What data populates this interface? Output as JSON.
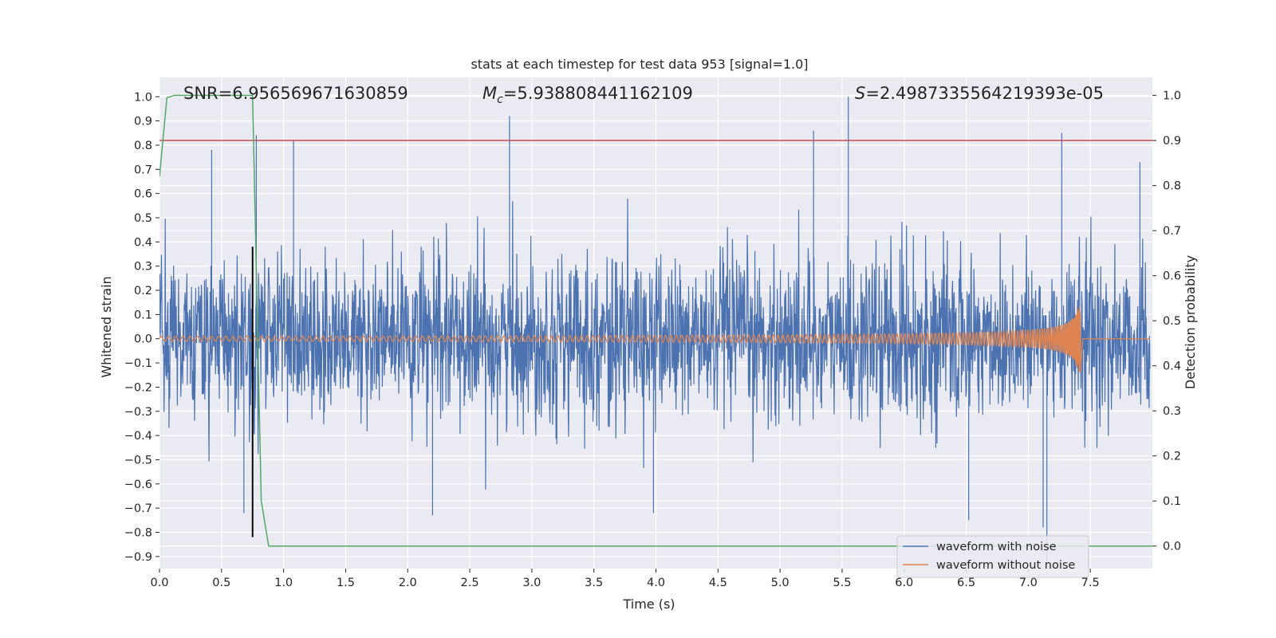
{
  "chart_data": {
    "type": "line",
    "title": "stats at each timestep for test data 953 [signal=1.0]",
    "xlabel": "Time (s)",
    "ylabel": "Whitened strain",
    "y2label": "Detection probability",
    "xlim": [
      0.0,
      8.0
    ],
    "ylim": [
      -0.95,
      1.08
    ],
    "y2lim": [
      -0.05,
      1.04
    ],
    "x_ticks": [
      0.0,
      0.5,
      1.0,
      1.5,
      2.0,
      2.5,
      3.0,
      3.5,
      4.0,
      4.5,
      5.0,
      5.5,
      6.0,
      6.5,
      7.0,
      7.5
    ],
    "x_tick_labels": [
      "0.0",
      "0.5",
      "1.0",
      "1.5",
      "2.0",
      "2.5",
      "3.0",
      "3.5",
      "4.0",
      "4.5",
      "5.0",
      "5.5",
      "6.0",
      "6.5",
      "7.0",
      "7.5"
    ],
    "y_ticks": [
      -0.9,
      -0.8,
      -0.7,
      -0.6,
      -0.5,
      -0.4,
      -0.3,
      -0.2,
      -0.1,
      0.0,
      0.1,
      0.2,
      0.3,
      0.4,
      0.5,
      0.6,
      0.7,
      0.8,
      0.9,
      1.0
    ],
    "y_tick_labels": [
      "−0.9",
      "−0.8",
      "−0.7",
      "−0.6",
      "−0.5",
      "−0.4",
      "−0.3",
      "−0.2",
      "−0.1",
      "0.0",
      "0.1",
      "0.2",
      "0.3",
      "0.4",
      "0.5",
      "0.6",
      "0.7",
      "0.8",
      "0.9",
      "1.0"
    ],
    "y2_ticks": [
      0.0,
      0.1,
      0.2,
      0.3,
      0.4,
      0.5,
      0.6,
      0.7,
      0.8,
      0.9,
      1.0
    ],
    "y2_tick_labels": [
      "0.0",
      "0.1",
      "0.2",
      "0.3",
      "0.4",
      "0.5",
      "0.6",
      "0.7",
      "0.8",
      "0.9",
      "1.0"
    ],
    "grid": true,
    "legend_position": "bottom-right",
    "annotations": {
      "snr": "SNR=6.956569671630859",
      "mc_symbol": "M",
      "mc_sub": "c",
      "mc_value": "=5.938808441162109",
      "s_symbol": "S",
      "s_value": "=2.4987335564219393e-05"
    },
    "series": [
      {
        "name": "waveform with noise",
        "color": "#4c72b0",
        "description": "noisy whitened strain spanning 0 to 7.98 s",
        "envelope_min": -0.92,
        "envelope_max": 1.0,
        "peaks": [
          {
            "t": 0.42,
            "v": 0.78
          },
          {
            "t": 0.78,
            "v": 0.84
          },
          {
            "t": 1.08,
            "v": 0.82
          },
          {
            "t": 2.82,
            "v": 0.92
          },
          {
            "t": 5.27,
            "v": 0.86
          },
          {
            "t": 5.55,
            "v": 1.0
          },
          {
            "t": 7.27,
            "v": 0.85
          },
          {
            "t": 7.9,
            "v": 0.73
          },
          {
            "t": 0.68,
            "v": -0.72
          },
          {
            "t": 2.2,
            "v": -0.73
          },
          {
            "t": 3.98,
            "v": -0.72
          },
          {
            "t": 6.52,
            "v": -0.75
          },
          {
            "t": 7.12,
            "v": -0.78
          },
          {
            "t": 7.15,
            "v": -0.92
          }
        ]
      },
      {
        "name": "waveform without noise",
        "color": "#dd8452",
        "description": "chirp growing in amplitude and frequency until merger",
        "merger_time": 7.42,
        "start_amplitude": 0.01,
        "peak_amplitude": 0.14,
        "post_merger_value": 0.0
      }
    ],
    "detection_probability": {
      "color": "#55a868",
      "x": [
        0.0,
        0.06,
        0.12,
        0.2,
        0.4,
        0.6,
        0.75,
        0.82,
        0.88,
        8.0
      ],
      "y": [
        0.82,
        0.995,
        1.0,
        1.0,
        1.0,
        1.0,
        1.0,
        0.1,
        0.0,
        0.0
      ]
    },
    "threshold": {
      "color": "#c44e52",
      "y2": 0.9
    },
    "marker_line": {
      "color": "#000000",
      "x": 0.75,
      "y_from": -0.82,
      "y_to": 0.38
    }
  }
}
